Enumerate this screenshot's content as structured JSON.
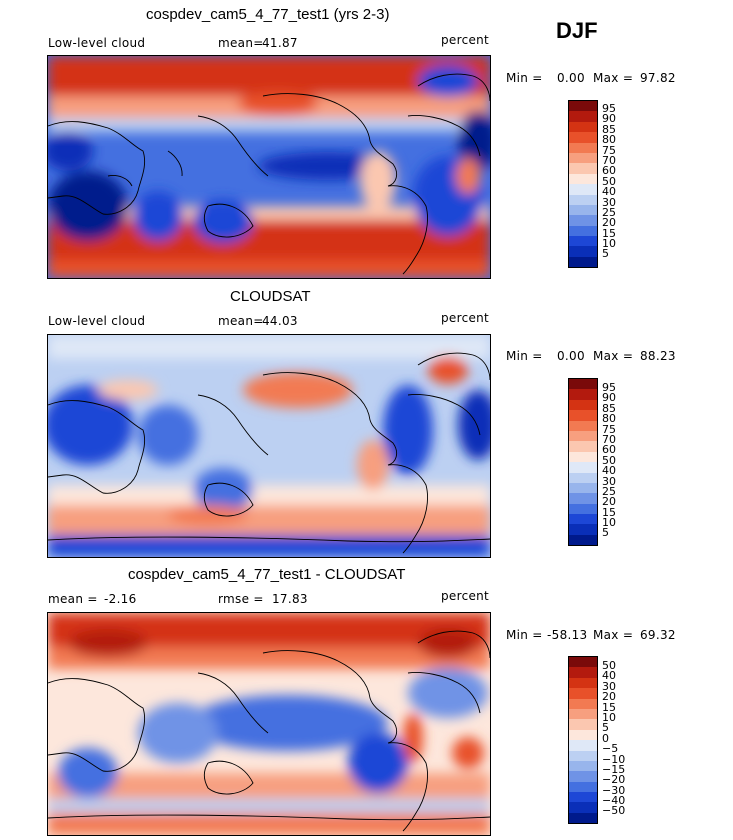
{
  "season": "DJF",
  "panels": [
    {
      "title": "cospdev_cam5_4_77_test1 (yrs 2-3)",
      "variable": "Low-level cloud",
      "stat_label": "mean=",
      "stat_value": "41.87",
      "units": "percent",
      "min_label": "Min =",
      "min_value": "0.00",
      "max_label": "Max =",
      "max_value": "97.82",
      "palette": "abs"
    },
    {
      "title": "CLOUDSAT",
      "variable": "Low-level cloud",
      "stat_label": "mean=",
      "stat_value": "44.03",
      "units": "percent",
      "min_label": "Min =",
      "min_value": "0.00",
      "max_label": "Max =",
      "max_value": "88.23",
      "palette": "abs"
    },
    {
      "title": "cospdev_cam5_4_77_test1 - CLOUDSAT",
      "mean_label": "mean =",
      "mean_value": "-2.16",
      "rmse_label": "rmse =",
      "rmse_value": "17.83",
      "units": "percent",
      "min_label": "Min =",
      "min_value": "-58.13",
      "max_label": "Max =",
      "max_value": "69.32",
      "palette": "diff"
    }
  ],
  "colorbars": {
    "abs": {
      "labels": [
        "95",
        "90",
        "85",
        "80",
        "75",
        "70",
        "60",
        "50",
        "40",
        "30",
        "25",
        "20",
        "15",
        "10",
        "5"
      ],
      "colors": [
        "#7a0a0a",
        "#b31a0e",
        "#d43313",
        "#e8512a",
        "#f27a52",
        "#f79f7f",
        "#fbc7b0",
        "#fde7dc",
        "#dfe8f7",
        "#bcd0f2",
        "#98b5ec",
        "#6f93e6",
        "#4470e0",
        "#1d47d6",
        "#0a2fb8",
        "#001a8c"
      ]
    },
    "diff": {
      "labels": [
        "50",
        "40",
        "30",
        "20",
        "15",
        "10",
        "5",
        "0",
        "-5",
        "-10",
        "-15",
        "-20",
        "-30",
        "-40",
        "-50"
      ],
      "colors": [
        "#7a0a0a",
        "#b31a0e",
        "#d43313",
        "#e8512a",
        "#f27a52",
        "#f79f7f",
        "#fbc7b0",
        "#fde7dc",
        "#dfe8f7",
        "#bcd0f2",
        "#98b5ec",
        "#6f93e6",
        "#4470e0",
        "#1d47d6",
        "#0a2fb8",
        "#001a8c"
      ]
    }
  },
  "chart_data": [
    {
      "type": "heatmap",
      "title": "cospdev_cam5_4_77_test1 (yrs 2-3)",
      "variable": "Low-level cloud",
      "units": "percent",
      "mean": 41.87,
      "min": 0.0,
      "max": 97.82,
      "contour_levels": [
        5,
        10,
        15,
        20,
        25,
        30,
        40,
        50,
        60,
        70,
        75,
        80,
        85,
        90,
        95
      ],
      "projection": "cylindrical equidistant, centered on 180"
    },
    {
      "type": "heatmap",
      "title": "CLOUDSAT",
      "variable": "Low-level cloud",
      "units": "percent",
      "mean": 44.03,
      "min": 0.0,
      "max": 88.23,
      "contour_levels": [
        5,
        10,
        15,
        20,
        25,
        30,
        40,
        50,
        60,
        70,
        75,
        80,
        85,
        90,
        95
      ],
      "projection": "cylindrical equidistant, centered on 180"
    },
    {
      "type": "heatmap",
      "title": "cospdev_cam5_4_77_test1 - CLOUDSAT",
      "units": "percent",
      "mean": -2.16,
      "rmse": 17.83,
      "min": -58.13,
      "max": 69.32,
      "contour_levels": [
        -50,
        -40,
        -30,
        -20,
        -15,
        -10,
        -5,
        0,
        5,
        10,
        15,
        20,
        30,
        40,
        50
      ],
      "projection": "cylindrical equidistant, centered on 180"
    }
  ]
}
